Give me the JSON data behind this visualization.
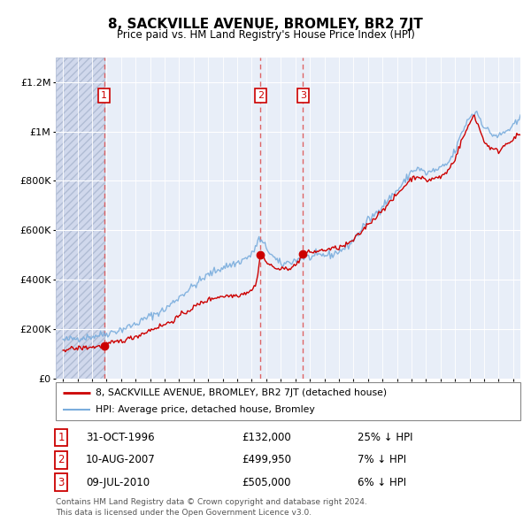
{
  "title": "8, SACKVILLE AVENUE, BROMLEY, BR2 7JT",
  "subtitle": "Price paid vs. HM Land Registry's House Price Index (HPI)",
  "property_label": "8, SACKVILLE AVENUE, BROMLEY, BR2 7JT (detached house)",
  "hpi_label": "HPI: Average price, detached house, Bromley",
  "footer": "Contains HM Land Registry data © Crown copyright and database right 2024.\nThis data is licensed under the Open Government Licence v3.0.",
  "sales": [
    {
      "num": 1,
      "date": "31-OCT-1996",
      "price": 132000,
      "year": 1996.83,
      "note": "25% ↓ HPI"
    },
    {
      "num": 2,
      "date": "10-AUG-2007",
      "price": 499950,
      "year": 2007.61,
      "note": "7% ↓ HPI"
    },
    {
      "num": 3,
      "date": "09-JUL-2010",
      "price": 505000,
      "year": 2010.52,
      "note": "6% ↓ HPI"
    }
  ],
  "xlim": [
    1993.5,
    2025.5
  ],
  "ylim": [
    0,
    1300000
  ],
  "yticks": [
    0,
    200000,
    400000,
    600000,
    800000,
    1000000,
    1200000
  ],
  "xticks": [
    1994,
    1995,
    1996,
    1997,
    1998,
    1999,
    2000,
    2001,
    2002,
    2003,
    2004,
    2005,
    2006,
    2007,
    2008,
    2009,
    2010,
    2011,
    2012,
    2013,
    2014,
    2015,
    2016,
    2017,
    2018,
    2019,
    2020,
    2021,
    2022,
    2023,
    2024,
    2025
  ],
  "hatch_end_year": 1996.83,
  "background_color": "#e8eef8",
  "property_line_color": "#cc0000",
  "hpi_line_color": "#7aaddd",
  "sale_marker_color": "#cc0000",
  "dashed_line_color": "#dd5555",
  "box_color": "#cc0000",
  "title_font": "DejaVu Sans",
  "title_fontsize": 11,
  "subtitle_fontsize": 9
}
